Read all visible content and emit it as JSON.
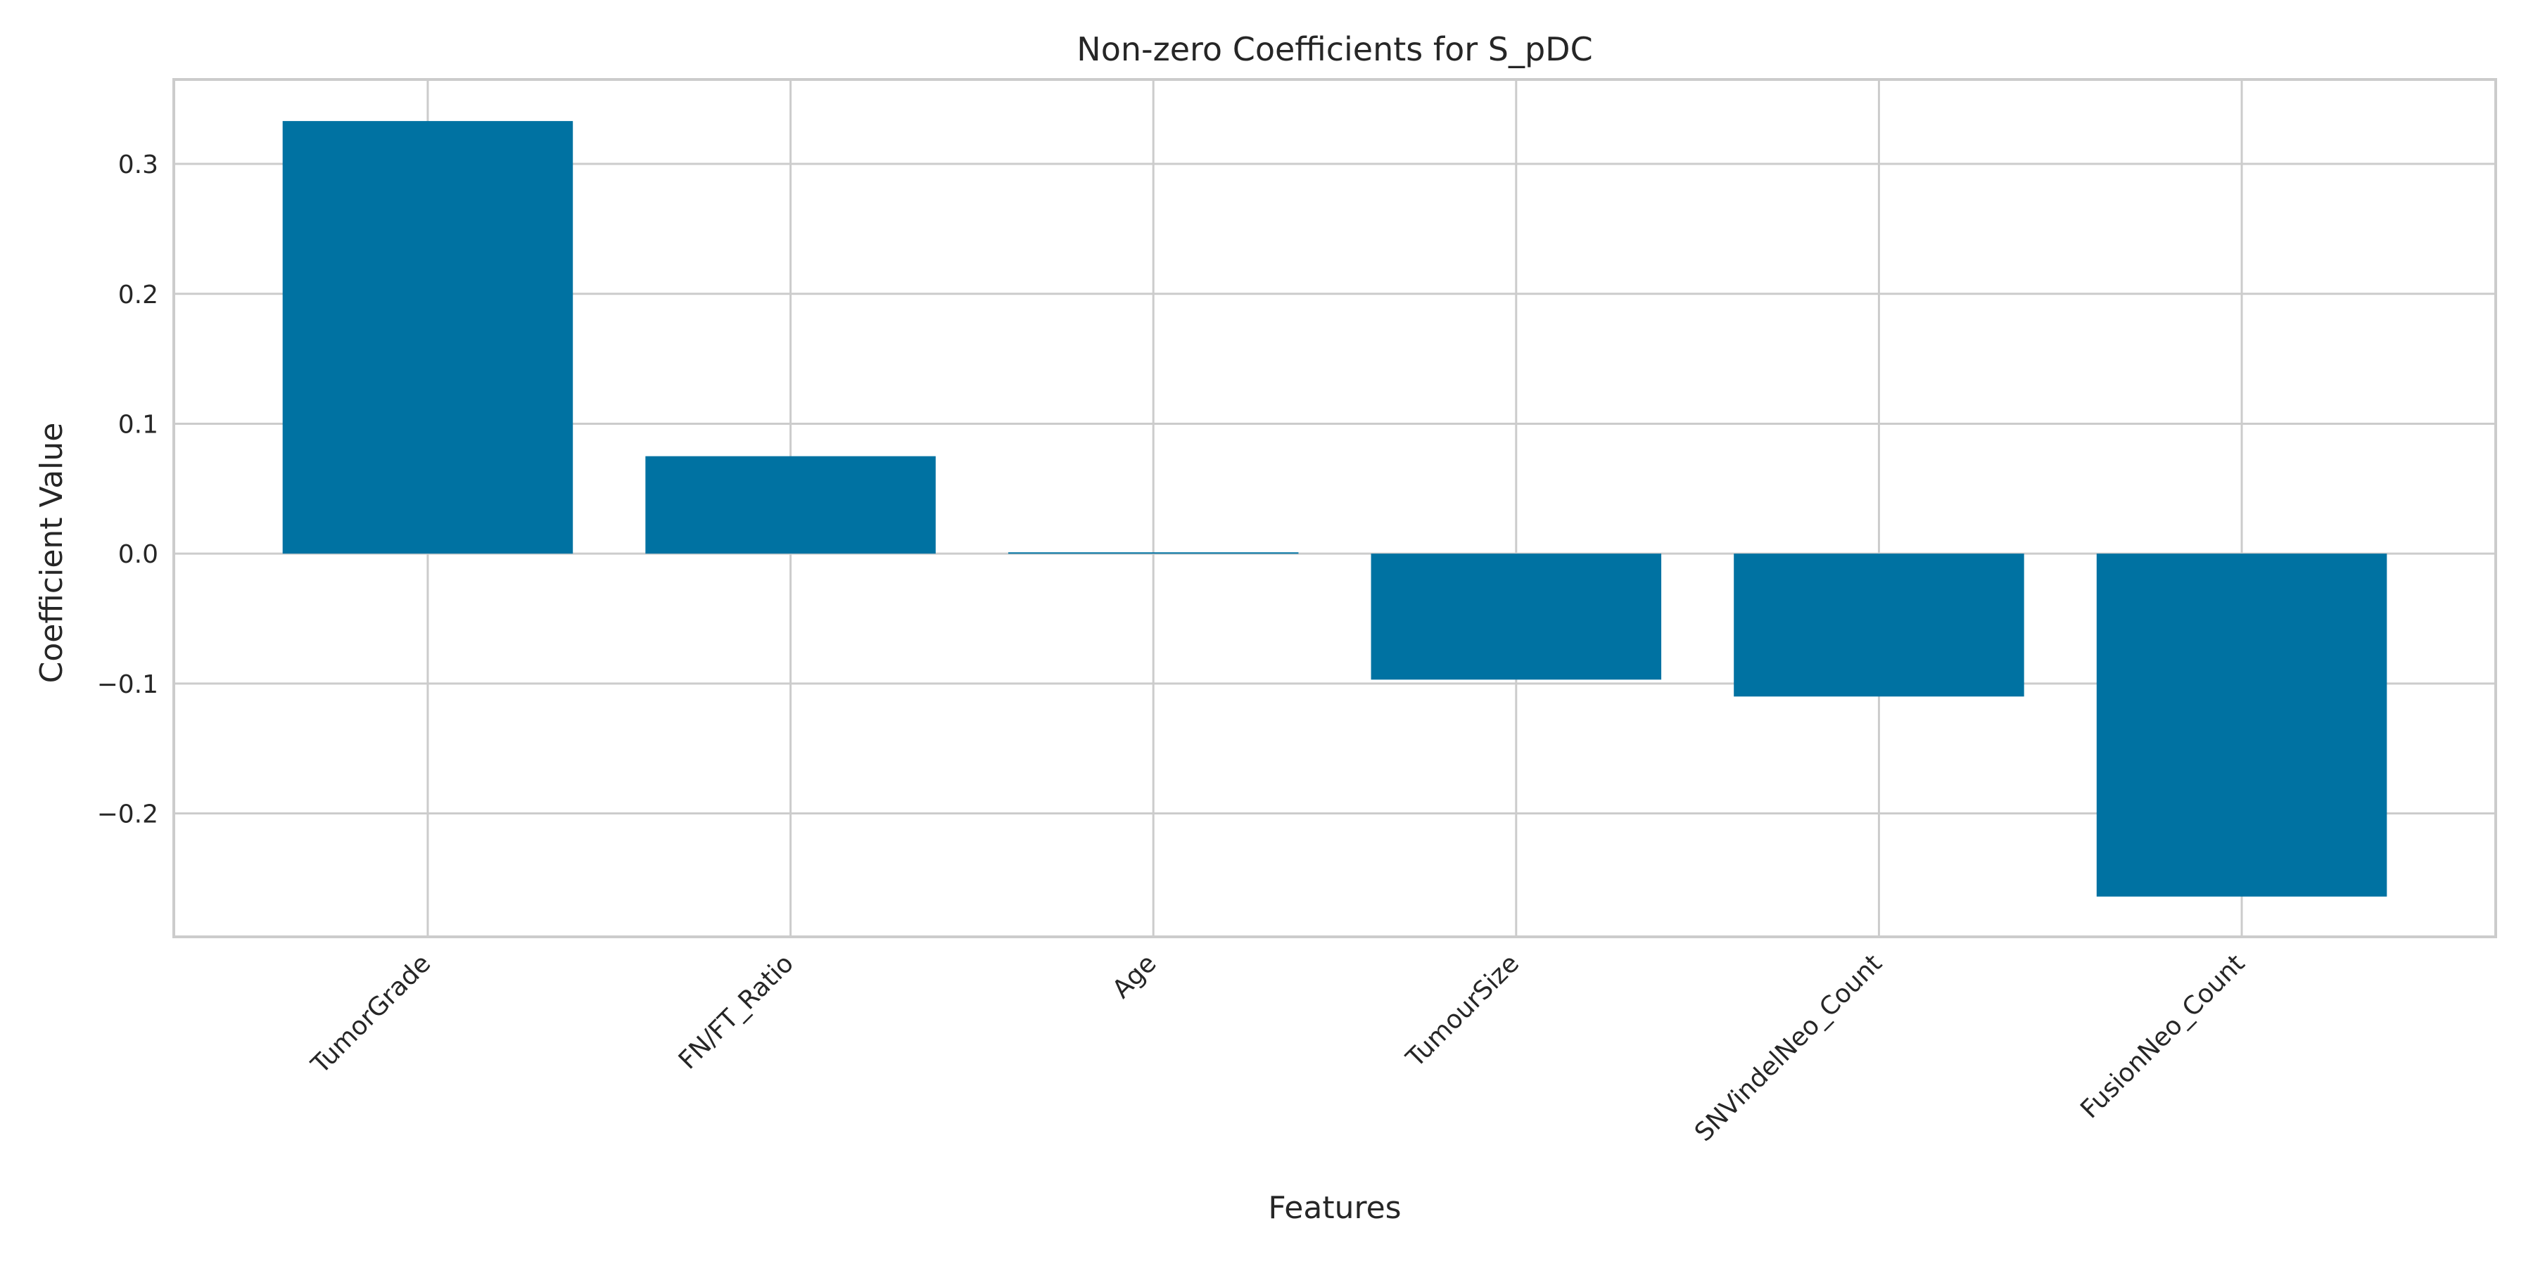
{
  "chart_data": {
    "type": "bar",
    "title": "Non-zero Coefficients for S_pDC",
    "xlabel": "Features",
    "ylabel": "Coefficient Value",
    "categories": [
      "TumorGrade",
      "FN/FT_Ratio",
      "Age",
      "TumourSize",
      "SNVindelNeo_Count",
      "FusionNeo_Count"
    ],
    "values": [
      0.333,
      0.075,
      0.001,
      -0.097,
      -0.11,
      -0.264
    ],
    "ylim": [
      -0.295,
      0.365
    ],
    "yticks": [
      -0.2,
      -0.1,
      0.0,
      0.1,
      0.2,
      0.3
    ],
    "ytick_labels": [
      "−0.2",
      "−0.1",
      "0.0",
      "0.1",
      "0.2",
      "0.3"
    ],
    "grid": true,
    "bar_color": "#0072a2",
    "grid_color": "#cccccc"
  }
}
